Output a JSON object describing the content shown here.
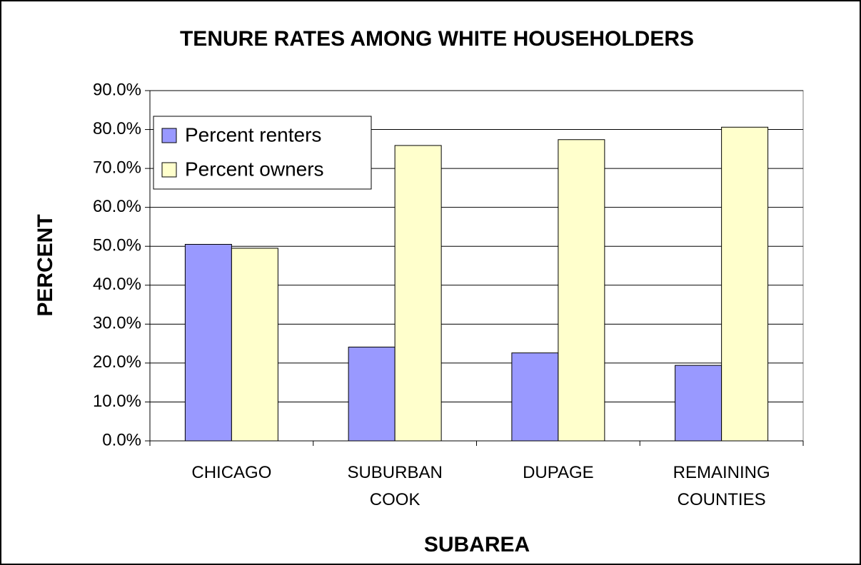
{
  "chart_data": {
    "type": "bar",
    "title": "TENURE RATES AMONG WHITE HOUSEHOLDERS",
    "x_label": "SUBAREA",
    "y_label": "PERCENT",
    "categories": [
      "CHICAGO",
      "SUBURBAN COOK",
      "DUPAGE",
      "REMAINING COUNTIES"
    ],
    "series": [
      {
        "name": "Percent renters",
        "color": "#9999ff",
        "values": [
          50.5,
          24.1,
          22.6,
          19.4
        ]
      },
      {
        "name": "Percent owners",
        "color": "#ffffcc",
        "values": [
          49.5,
          75.9,
          77.4,
          80.6
        ]
      }
    ],
    "ylim": [
      0,
      90
    ],
    "yticks": [
      {
        "value": 0,
        "label": "0.0%"
      },
      {
        "value": 10,
        "label": "10.0%"
      },
      {
        "value": 20,
        "label": "20.0%"
      },
      {
        "value": 30,
        "label": "30.0%"
      },
      {
        "value": 40,
        "label": "40.0%"
      },
      {
        "value": 50,
        "label": "50.0%"
      },
      {
        "value": 60,
        "label": "60.0%"
      },
      {
        "value": 70,
        "label": "70.0%"
      },
      {
        "value": 80,
        "label": "80.0%"
      },
      {
        "value": 90,
        "label": "90.0%"
      }
    ],
    "grid": true,
    "legend": "upper left"
  }
}
